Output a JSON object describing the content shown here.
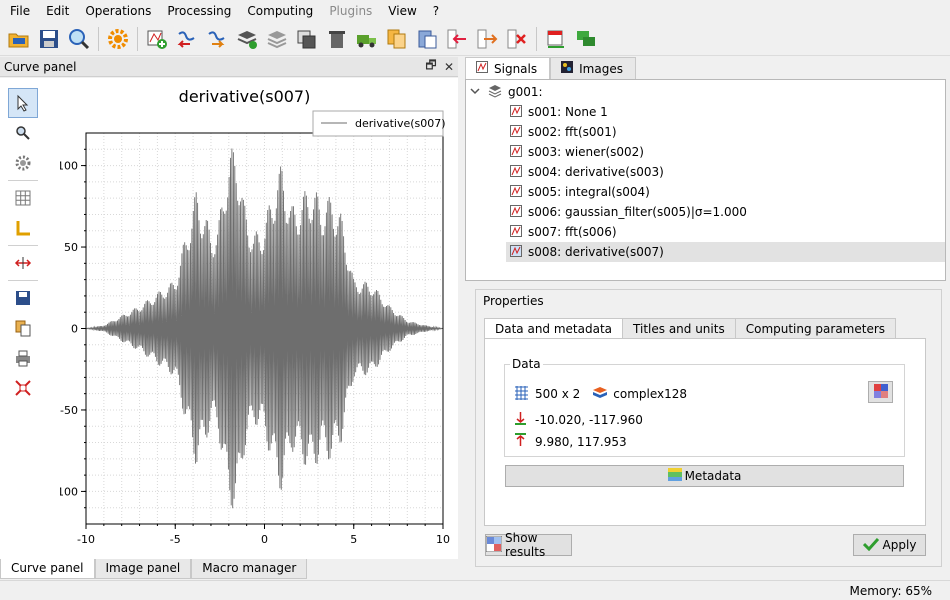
{
  "menu": [
    "File",
    "Edit",
    "Operations",
    "Processing",
    "Computing",
    "Plugins",
    "View",
    "?"
  ],
  "menu_disabled": [
    "Plugins"
  ],
  "toolbar": {
    "icons": [
      "open-hdf5-icon",
      "save-hdf5-icon",
      "browse-hdf5-icon",
      "settings-icon",
      "new-signal-icon",
      "import-signal-icon",
      "export-signal-icon",
      "group-icon",
      "stack-icon",
      "duplicate-icon",
      "delete-icon",
      "move-truck-icon",
      "copy-metadata-icon",
      "paste-metadata-icon",
      "move-up-icon",
      "move-down-icon",
      "remove-icon",
      "annotations-icon",
      "comments-icon"
    ]
  },
  "curve_panel": {
    "title": "Curve panel",
    "undock": "🗗",
    "close": "✕",
    "plot_title": "derivative(s007)",
    "legend": "derivative(s007)"
  },
  "chart_data": {
    "type": "line",
    "title": "derivative(s007)",
    "xlabel": "",
    "ylabel": "",
    "xlim": [
      -10,
      10
    ],
    "ylim": [
      -117.96,
      117.953
    ],
    "x_ticks": [
      -10,
      -5,
      0,
      5,
      10
    ],
    "y_ticks": [
      100,
      50,
      0,
      -50,
      -100
    ],
    "series": [
      {
        "name": "derivative(s007)",
        "points": 500,
        "xmin": -10.02,
        "ymin": -117.96,
        "xmax": 9.98,
        "ymax": 117.953
      }
    ],
    "envelope": {
      "x": [
        -10,
        -9,
        -8,
        -7,
        -6,
        -5,
        -4.2,
        -3.8,
        -3,
        -2.6,
        -2.2,
        -1.6,
        -1.2,
        -0.6,
        0,
        0.6,
        1,
        1.5,
        2,
        2.6,
        3.2,
        3.8,
        4.3,
        5,
        6,
        7,
        8,
        9,
        10
      ],
      "upper": [
        0,
        2,
        8,
        14,
        22,
        30,
        68,
        86,
        60,
        62,
        98,
        118,
        80,
        58,
        65,
        92,
        102,
        75,
        80,
        90,
        78,
        82,
        70,
        30,
        28,
        14,
        5,
        2,
        0
      ]
    },
    "grid": true,
    "legend_position": "top-right"
  },
  "side_tools": [
    "select-icon",
    "zoom-icon",
    "settings-gear-icon",
    "grid-icon",
    "axis-icon",
    "cross-section-icon",
    "save-icon",
    "copy-icon",
    "print-icon",
    "reset-zoom-icon"
  ],
  "bottom_tabs": [
    "Curve panel",
    "Image panel",
    "Macro manager"
  ],
  "right_tabs": [
    "Signals",
    "Images"
  ],
  "tree": {
    "group": "g001:",
    "items": [
      "s001: None 1",
      "s002: fft(s001)",
      "s003: wiener(s002)",
      "s004: derivative(s003)",
      "s005: integral(s004)",
      "s006: gaussian_filter(s005)|σ=1.000",
      "s007: fft(s006)",
      "s008: derivative(s007)"
    ],
    "selected_index": 7
  },
  "properties": {
    "label": "Properties",
    "tabs": [
      "Data and metadata",
      "Titles and units",
      "Computing parameters"
    ],
    "data_label": "Data",
    "shape": "500 x 2",
    "dtype": "complex128",
    "min": "-10.020, -117.960",
    "max": "9.980, 117.953",
    "metadata_button": "Metadata",
    "show_results": "Show results",
    "apply": "Apply"
  },
  "status": {
    "memory": "Memory: 65%"
  }
}
